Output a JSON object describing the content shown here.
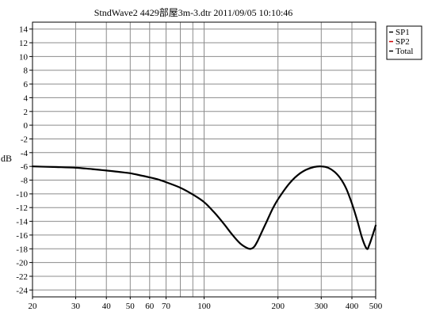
{
  "chart_data": {
    "type": "line",
    "title": "StndWave2  4429部屋3m-3.dtr     2011/09/05 10:10:46",
    "xlabel": "",
    "ylabel": "dB",
    "x_scale": "log",
    "xlim": [
      20,
      500
    ],
    "ylim": [
      -25,
      15
    ],
    "x_ticks": [
      20,
      30,
      40,
      50,
      60,
      70,
      100,
      200,
      300,
      400,
      500
    ],
    "y_ticks": [
      14,
      12,
      10,
      8,
      6,
      4,
      2,
      0,
      -2,
      -4,
      -6,
      -8,
      -10,
      -12,
      -14,
      -16,
      -18,
      -20,
      -22,
      -24
    ],
    "grid": true,
    "legend_position": "outside-right-top",
    "legend": [
      "SP1",
      "SP2",
      "Total"
    ],
    "series": [
      {
        "name": "Total",
        "color": "#000000",
        "x": [
          20,
          25,
          30,
          35,
          40,
          45,
          50,
          55,
          60,
          65,
          70,
          80,
          90,
          100,
          110,
          120,
          130,
          140,
          150,
          155,
          160,
          165,
          170,
          180,
          190,
          200,
          220,
          240,
          260,
          280,
          300,
          320,
          340,
          360,
          380,
          400,
          420,
          440,
          460,
          470,
          480,
          500
        ],
        "y": [
          -6.0,
          -6.1,
          -6.2,
          -6.4,
          -6.6,
          -6.8,
          -7.0,
          -7.3,
          -7.6,
          -7.9,
          -8.3,
          -9.1,
          -10.1,
          -11.2,
          -12.7,
          -14.3,
          -15.9,
          -17.2,
          -17.9,
          -18.0,
          -17.7,
          -16.9,
          -15.9,
          -14.0,
          -12.2,
          -10.8,
          -8.7,
          -7.3,
          -6.5,
          -6.1,
          -6.0,
          -6.2,
          -6.8,
          -7.8,
          -9.3,
          -11.4,
          -13.8,
          -16.4,
          -18.0,
          -17.5,
          -16.6,
          -14.6
        ]
      }
    ]
  }
}
